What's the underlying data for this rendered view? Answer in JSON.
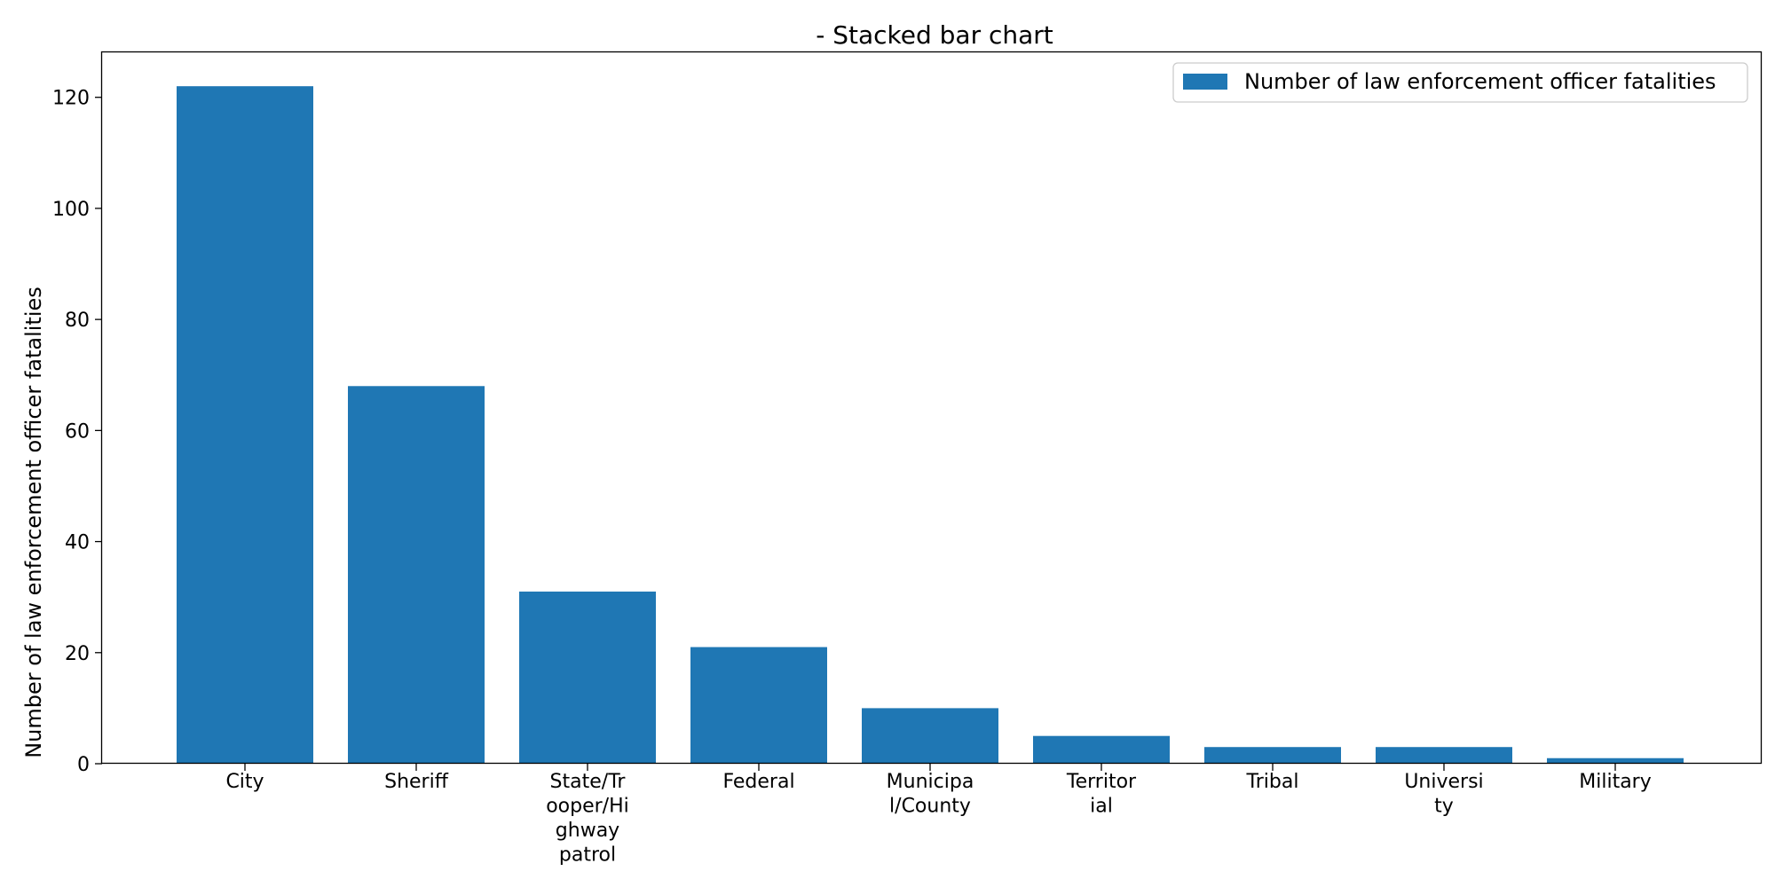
{
  "chart_data": {
    "type": "bar",
    "title": "- Stacked bar chart",
    "xlabel": "",
    "ylabel": "Number of law enforcement officer fatalities",
    "categories": [
      [
        "City"
      ],
      [
        "Sheriff"
      ],
      [
        "State/Tr",
        "ooper/Hi",
        "ghway",
        "patrol"
      ],
      [
        "Federal"
      ],
      [
        "Municipa",
        "l/County"
      ],
      [
        "Territor",
        "ial"
      ],
      [
        "Tribal"
      ],
      [
        "Universi",
        "ty"
      ],
      [
        "Military"
      ]
    ],
    "series": [
      {
        "name": "Number of law enforcement officer fatalities",
        "values": [
          122,
          68,
          31,
          21,
          10,
          5,
          3,
          3,
          1
        ],
        "color": "#1f77b4"
      }
    ],
    "ylim": [
      0,
      128.1
    ],
    "yticks": [
      0,
      20,
      40,
      60,
      80,
      100,
      120
    ],
    "grid": false,
    "legend": "top-right"
  }
}
